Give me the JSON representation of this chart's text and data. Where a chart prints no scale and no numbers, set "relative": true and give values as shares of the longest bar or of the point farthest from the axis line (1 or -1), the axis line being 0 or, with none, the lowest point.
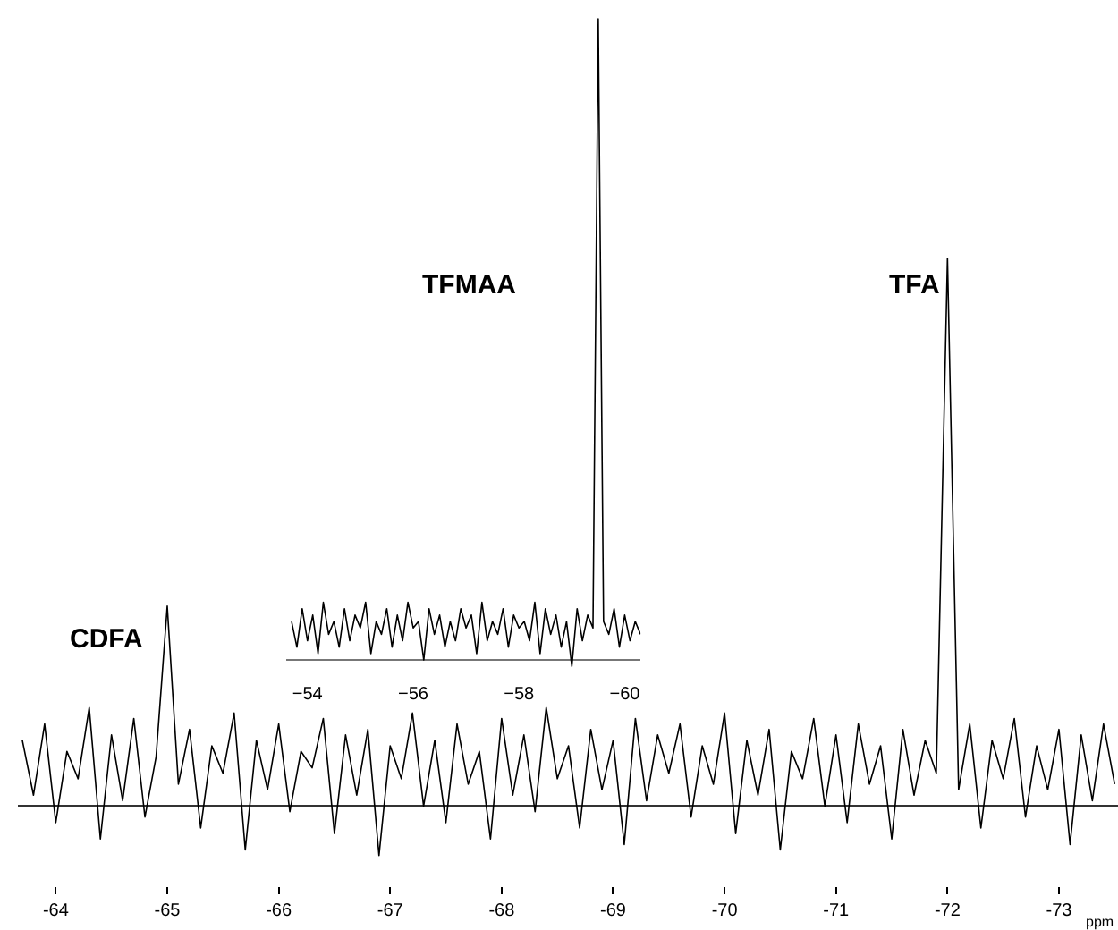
{
  "chart_data": [
    {
      "type": "line",
      "relative": true,
      "xlabel": "ppm",
      "xlim": [
        -63.66,
        -73.53
      ],
      "xticks": [
        -64,
        -65,
        -66,
        -67,
        -68,
        -69,
        -70,
        -71,
        -72,
        -73
      ],
      "annotations": [
        "CDFA",
        "TFA"
      ],
      "series": [
        {
          "color": "#000000",
          "x": [
            -63.7,
            -63.8,
            -63.9,
            -64.0,
            -64.1,
            -64.2,
            -64.3,
            -64.4,
            -64.5,
            -64.6,
            -64.7,
            -64.8,
            -64.9,
            -65.0,
            -65.1,
            -65.2,
            -65.3,
            -65.4,
            -65.5,
            -65.6,
            -65.7,
            -65.8,
            -65.9,
            -66.0,
            -66.1,
            -66.2,
            -66.3,
            -66.4,
            -66.5,
            -66.6,
            -66.7,
            -66.8,
            -66.9,
            -67.0,
            -67.1,
            -67.2,
            -67.3,
            -67.4,
            -67.5,
            -67.6,
            -67.7,
            -67.8,
            -67.9,
            -68.0,
            -68.1,
            -68.2,
            -68.3,
            -68.4,
            -68.5,
            -68.6,
            -68.7,
            -68.8,
            -68.9,
            -69.0,
            -69.1,
            -69.2,
            -69.3,
            -69.4,
            -69.5,
            -69.6,
            -69.7,
            -69.8,
            -69.9,
            -70.0,
            -70.1,
            -70.2,
            -70.3,
            -70.4,
            -70.5,
            -70.6,
            -70.7,
            -70.8,
            -70.9,
            -71.0,
            -71.1,
            -71.2,
            -71.3,
            -71.4,
            -71.5,
            -71.6,
            -71.7,
            -71.8,
            -71.9,
            -72.0,
            -72.1,
            -72.2,
            -72.3,
            -72.4,
            -72.5,
            -72.6,
            -72.7,
            -72.8,
            -72.9,
            -73.0,
            -73.1,
            -73.2,
            -73.3,
            -73.4,
            -73.5
          ],
          "values": [
            0.12,
            0.02,
            0.15,
            -0.03,
            0.1,
            0.05,
            0.18,
            -0.06,
            0.13,
            0.01,
            0.16,
            -0.02,
            0.09,
            0.365,
            0.04,
            0.14,
            -0.04,
            0.11,
            0.06,
            0.17,
            -0.08,
            0.12,
            0.03,
            0.15,
            -0.01,
            0.1,
            0.07,
            0.16,
            -0.05,
            0.13,
            0.02,
            0.14,
            -0.09,
            0.11,
            0.05,
            0.17,
            0.0,
            0.12,
            -0.03,
            0.15,
            0.04,
            0.1,
            -0.06,
            0.16,
            0.02,
            0.13,
            -0.01,
            0.18,
            0.05,
            0.11,
            -0.04,
            0.14,
            0.03,
            0.12,
            -0.07,
            0.16,
            0.01,
            0.13,
            0.06,
            0.15,
            -0.02,
            0.11,
            0.04,
            0.17,
            -0.05,
            0.12,
            0.02,
            0.14,
            -0.08,
            0.1,
            0.05,
            0.16,
            0.0,
            0.13,
            -0.03,
            0.15,
            0.04,
            0.11,
            -0.06,
            0.14,
            0.02,
            0.12,
            0.06,
            1.0,
            0.03,
            0.15,
            -0.04,
            0.12,
            0.05,
            0.16,
            -0.02,
            0.11,
            0.03,
            0.14,
            -0.07,
            0.13,
            0.01,
            0.15,
            0.04
          ]
        }
      ]
    },
    {
      "type": "line",
      "relative": true,
      "xlim": [
        -53.6,
        -60.3
      ],
      "xticks": [
        -54,
        -56,
        -58,
        -60
      ],
      "annotations": [
        "TFMAA"
      ],
      "series": [
        {
          "color": "#000000",
          "x": [
            -53.7,
            -53.8,
            -53.9,
            -54.0,
            -54.1,
            -54.2,
            -54.3,
            -54.4,
            -54.5,
            -54.6,
            -54.7,
            -54.8,
            -54.9,
            -55.0,
            -55.1,
            -55.2,
            -55.3,
            -55.4,
            -55.5,
            -55.6,
            -55.7,
            -55.8,
            -55.9,
            -56.0,
            -56.1,
            -56.2,
            -56.3,
            -56.4,
            -56.5,
            -56.6,
            -56.7,
            -56.8,
            -56.9,
            -57.0,
            -57.1,
            -57.2,
            -57.3,
            -57.4,
            -57.5,
            -57.6,
            -57.7,
            -57.8,
            -57.9,
            -58.0,
            -58.1,
            -58.2,
            -58.3,
            -58.4,
            -58.5,
            -58.6,
            -58.7,
            -58.8,
            -58.9,
            -59.0,
            -59.1,
            -59.2,
            -59.3,
            -59.4,
            -59.5,
            -59.6,
            -59.7,
            -59.8,
            -59.9,
            -60.0,
            -60.1,
            -60.2,
            -60.3
          ],
          "values": [
            0.06,
            0.02,
            0.08,
            0.03,
            0.07,
            0.01,
            0.09,
            0.04,
            0.06,
            0.02,
            0.08,
            0.03,
            0.07,
            0.05,
            0.09,
            0.01,
            0.06,
            0.04,
            0.08,
            0.02,
            0.07,
            0.03,
            0.09,
            0.05,
            0.06,
            0.0,
            0.08,
            0.04,
            0.07,
            0.02,
            0.06,
            0.03,
            0.08,
            0.05,
            0.07,
            0.01,
            0.09,
            0.03,
            0.06,
            0.04,
            0.08,
            0.02,
            0.07,
            0.05,
            0.06,
            0.03,
            0.09,
            0.01,
            0.08,
            0.04,
            0.07,
            0.02,
            0.06,
            -0.01,
            0.08,
            0.03,
            0.07,
            0.05,
            1.0,
            0.06,
            0.04,
            0.08,
            0.02,
            0.07,
            0.03,
            0.06,
            0.04
          ]
        }
      ]
    }
  ]
}
